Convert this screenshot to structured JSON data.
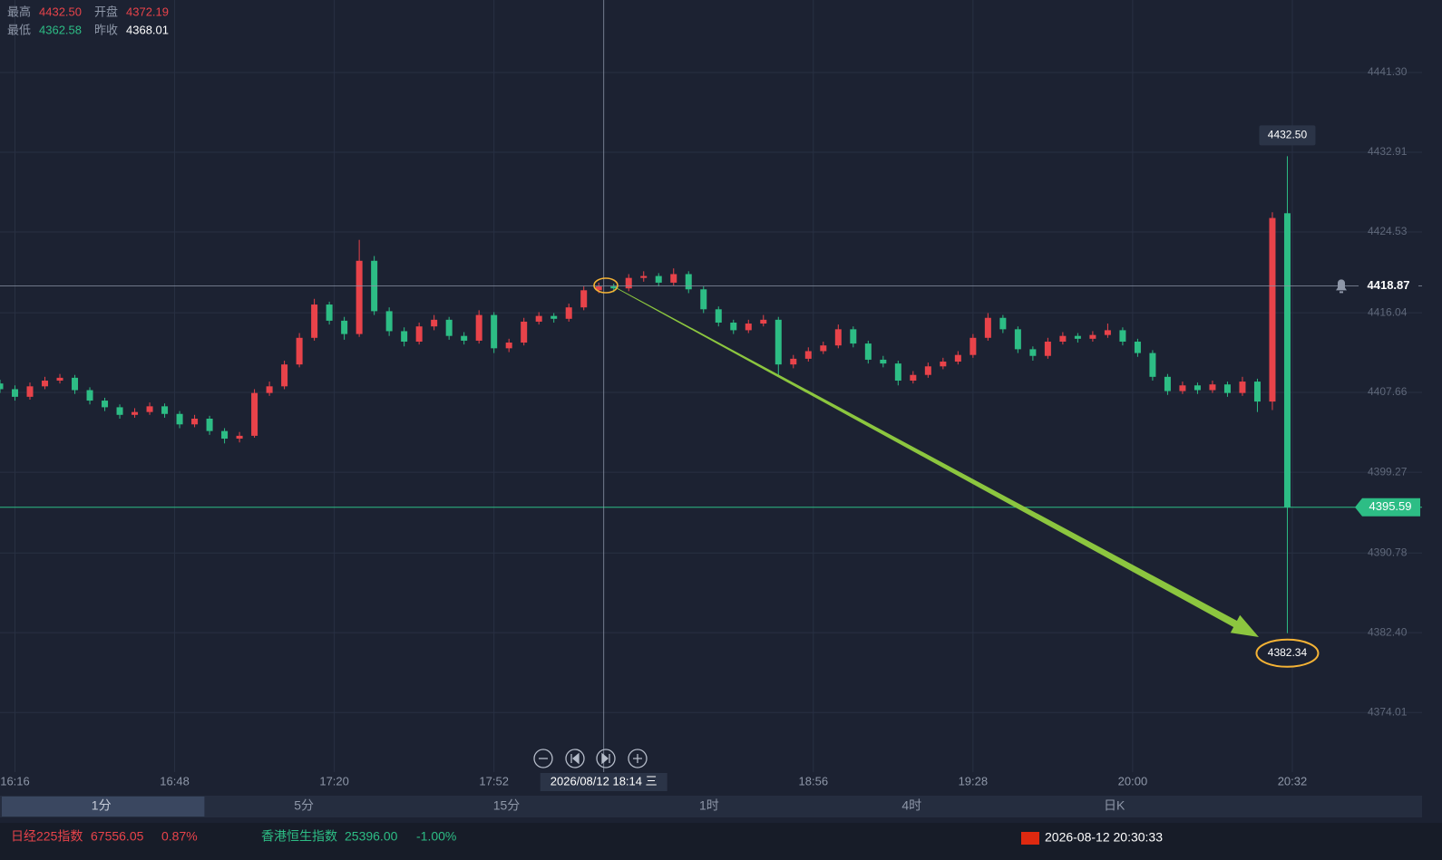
{
  "quote": [
    {
      "label": "最高",
      "value": "4432.50"
    },
    {
      "label": "开盘",
      "value": "4372.19"
    },
    {
      "label": "最低",
      "value": "4362.58"
    },
    {
      "label": "昨收",
      "value": "4368.01"
    }
  ],
  "chart_data": {
    "type": "candlestick",
    "up_color": "#e8434a",
    "down_color": "#2dbd85",
    "x": [
      "16:13",
      "16:16",
      "16:19",
      "16:22",
      "16:25",
      "16:28",
      "16:31",
      "16:34",
      "16:37",
      "16:40",
      "16:43",
      "16:46",
      "16:49",
      "16:52",
      "16:55",
      "16:58",
      "17:01",
      "17:04",
      "17:07",
      "17:10",
      "17:13",
      "17:16",
      "17:19",
      "17:22",
      "17:25",
      "17:28",
      "17:31",
      "17:34",
      "17:37",
      "17:40",
      "17:43",
      "17:46",
      "17:49",
      "17:52",
      "17:55",
      "17:58",
      "18:01",
      "18:04",
      "18:07",
      "18:10",
      "18:13",
      "18:16",
      "18:19",
      "18:22",
      "18:25",
      "18:28",
      "18:31",
      "18:34",
      "18:37",
      "18:40",
      "18:43",
      "18:46",
      "18:49",
      "18:52",
      "18:55",
      "18:58",
      "19:01",
      "19:04",
      "19:07",
      "19:10",
      "19:13",
      "19:16",
      "19:19",
      "19:22",
      "19:25",
      "19:28",
      "19:31",
      "19:34",
      "19:37",
      "19:40",
      "19:43",
      "19:46",
      "19:49",
      "19:52",
      "19:55",
      "19:58",
      "20:01",
      "20:04",
      "20:07",
      "20:10",
      "20:13",
      "20:16",
      "20:19",
      "20:22",
      "20:25",
      "20:28",
      "20:31"
    ],
    "open": [
      4408.6,
      4408.0,
      4407.2,
      4408.3,
      4408.9,
      4409.2,
      4407.9,
      4406.8,
      4406.1,
      4405.3,
      4405.6,
      4406.2,
      4405.4,
      4404.3,
      4404.9,
      4403.6,
      4402.8,
      4403.1,
      4407.6,
      4408.3,
      4410.6,
      4413.4,
      4416.9,
      4415.2,
      4413.8,
      4421.5,
      4416.2,
      4414.1,
      4413.0,
      4414.6,
      4415.3,
      4413.6,
      4413.1,
      4415.8,
      4412.3,
      4412.9,
      4415.1,
      4415.7,
      4415.4,
      4416.6,
      4418.4,
      4418.8,
      4418.6,
      4419.7,
      4419.9,
      4419.2,
      4420.1,
      4418.5,
      4416.4,
      4415.0,
      4414.2,
      4414.9,
      4415.3,
      4410.6,
      4411.2,
      4412.0,
      4412.6,
      4414.3,
      4412.8,
      4411.1,
      4410.7,
      4408.9,
      4409.5,
      4410.4,
      4410.9,
      4411.6,
      4413.4,
      4415.5,
      4414.3,
      4412.2,
      4411.5,
      4413.0,
      4413.6,
      4413.3,
      4413.7,
      4414.2,
      4413.0,
      4411.8,
      4409.3,
      4407.8,
      4408.4,
      4407.9,
      4408.5,
      4407.6,
      4408.8,
      4406.7,
      4426.5
    ],
    "high": [
      4409.0,
      4408.4,
      4408.7,
      4409.3,
      4409.6,
      4409.5,
      4408.2,
      4407.1,
      4406.4,
      4406.0,
      4406.6,
      4406.5,
      4405.7,
      4405.3,
      4405.2,
      4403.9,
      4403.5,
      4408.0,
      4408.8,
      4411.0,
      4413.9,
      4417.5,
      4417.2,
      4415.6,
      4423.7,
      4422.0,
      4416.6,
      4414.5,
      4415.0,
      4415.8,
      4415.6,
      4414.0,
      4416.3,
      4416.1,
      4413.3,
      4415.5,
      4416.1,
      4416.0,
      4417.0,
      4418.8,
      4419.2,
      4419.1,
      4420.1,
      4420.4,
      4420.2,
      4420.7,
      4420.4,
      4418.8,
      4416.7,
      4415.3,
      4415.3,
      4415.8,
      4415.6,
      4411.6,
      4412.4,
      4413.0,
      4414.8,
      4414.6,
      4413.1,
      4411.5,
      4411.0,
      4409.9,
      4410.8,
      4411.3,
      4412.0,
      4413.8,
      4416.0,
      4415.8,
      4414.6,
      4412.5,
      4413.4,
      4414.0,
      4413.9,
      4414.1,
      4414.9,
      4414.5,
      4413.3,
      4412.1,
      4409.6,
      4408.8,
      4408.7,
      4408.9,
      4408.8,
      4409.3,
      4409.1,
      4426.6,
      4432.5
    ],
    "low": [
      4407.6,
      4406.8,
      4406.9,
      4408.0,
      4408.6,
      4407.5,
      4406.4,
      4405.7,
      4404.9,
      4405.0,
      4405.3,
      4405.0,
      4403.9,
      4404.0,
      4403.2,
      4402.3,
      4402.4,
      4402.9,
      4407.3,
      4408.0,
      4410.3,
      4413.1,
      4414.8,
      4413.2,
      4413.5,
      4415.8,
      4413.6,
      4412.5,
      4412.7,
      4414.2,
      4413.2,
      4412.7,
      4412.8,
      4411.8,
      4411.9,
      4412.6,
      4414.8,
      4415.0,
      4415.1,
      4416.3,
      4418.1,
      4418.2,
      4418.3,
      4419.3,
      4418.8,
      4418.9,
      4418.1,
      4416.0,
      4414.6,
      4413.8,
      4413.9,
      4414.6,
      4409.4,
      4410.2,
      4410.9,
      4411.7,
      4412.3,
      4412.4,
      4410.7,
      4410.3,
      4408.4,
      4408.6,
      4409.2,
      4410.1,
      4410.6,
      4411.3,
      4413.1,
      4413.9,
      4411.8,
      4411.0,
      4411.2,
      4412.7,
      4412.9,
      4413.0,
      4413.4,
      4412.6,
      4411.4,
      4408.9,
      4407.4,
      4407.5,
      4407.5,
      4407.6,
      4407.2,
      4407.3,
      4405.6,
      4405.8,
      4382.34
    ],
    "close": [
      4408.0,
      4407.2,
      4408.3,
      4408.9,
      4409.2,
      4407.9,
      4406.8,
      4406.1,
      4405.3,
      4405.6,
      4406.2,
      4405.4,
      4404.3,
      4404.9,
      4403.6,
      4402.8,
      4403.1,
      4407.6,
      4408.3,
      4410.6,
      4413.4,
      4416.9,
      4415.2,
      4413.8,
      4421.5,
      4416.2,
      4414.1,
      4413.0,
      4414.6,
      4415.3,
      4413.6,
      4413.1,
      4415.8,
      4412.3,
      4412.9,
      4415.1,
      4415.7,
      4415.4,
      4416.6,
      4418.4,
      4418.8,
      4418.6,
      4419.7,
      4419.9,
      4419.2,
      4420.1,
      4418.5,
      4416.4,
      4415.0,
      4414.2,
      4414.9,
      4415.3,
      4410.6,
      4411.2,
      4412.0,
      4412.6,
      4414.3,
      4412.8,
      4411.1,
      4410.7,
      4408.9,
      4409.5,
      4410.4,
      4410.9,
      4411.6,
      4413.4,
      4415.5,
      4414.3,
      4412.2,
      4411.5,
      4413.0,
      4413.6,
      4413.3,
      4413.7,
      4414.2,
      4413.0,
      4411.8,
      4409.3,
      4407.8,
      4408.4,
      4407.9,
      4408.5,
      4407.6,
      4408.8,
      4406.7,
      4426.0,
      4395.59
    ],
    "xlim": [
      "16:13",
      "20:46"
    ],
    "xticks": [
      "16:16",
      "16:48",
      "17:20",
      "17:52",
      "18:56",
      "19:28",
      "20:00",
      "20:32"
    ],
    "ylim": [
      4367.74,
      4448.92
    ],
    "yticks": [
      {
        "value": 4441.3,
        "label": "4441.30"
      },
      4432.91,
      4424.53,
      4416.04,
      4407.66,
      4399.27,
      4390.78,
      {
        "value": 4382.4,
        "label": "4382.40"
      },
      4374.01
    ],
    "grid": true,
    "crosshair": {
      "x": "18:14",
      "label": "2026/08/12 18:14 三",
      "y": 4418.87
    },
    "last_price": 4395.59,
    "high_label": {
      "value": 4432.5,
      "label": "4432.50"
    },
    "low_label": 4382.34
  },
  "timeframes": [
    "1分",
    "5分",
    "15分",
    "1时",
    "4时",
    "日K"
  ],
  "ticker": [
    {
      "name": "日经225指数",
      "price": "67556.05",
      "change": "0.87%"
    },
    {
      "name": "香港恒生指数",
      "price": "25396.00",
      "change": "-1.00%"
    }
  ],
  "status": {
    "time": "2026-08-12 20:30:33"
  }
}
